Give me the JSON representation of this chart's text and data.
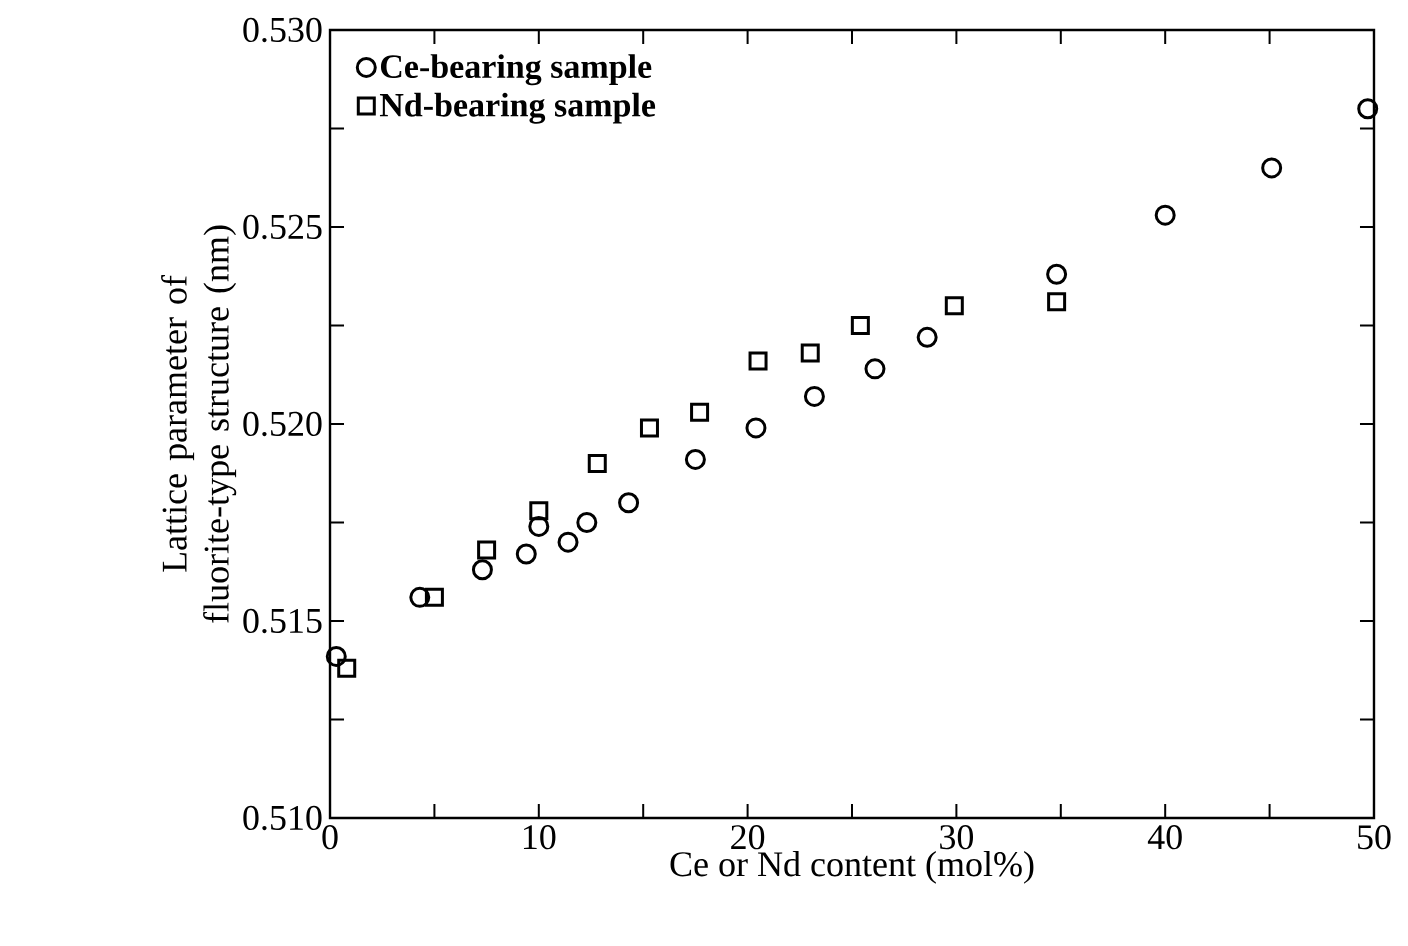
{
  "chart_data": {
    "type": "scatter",
    "xlabel": "Ce or Nd content (mol%)",
    "ylabel": "Lattice parameter of fluorite-type structure (nm)",
    "xlim": [
      0,
      50
    ],
    "ylim": [
      0.51,
      0.53
    ],
    "xticks": [
      0,
      {
        "value": 5,
        "label": null
      },
      10,
      {
        "value": 15,
        "label": null
      },
      20,
      {
        "value": 25,
        "label": null
      },
      30,
      {
        "value": 35,
        "label": null
      },
      40,
      {
        "value": 45,
        "label": null
      },
      50
    ],
    "yticks": [
      {
        "value": 0.51,
        "label": "0.510"
      },
      {
        "value": 0.5125,
        "label": null
      },
      {
        "value": 0.515,
        "label": "0.515"
      },
      {
        "value": 0.5175,
        "label": null
      },
      {
        "value": 0.52,
        "label": "0.520"
      },
      {
        "value": 0.5225,
        "label": null
      },
      {
        "value": 0.525,
        "label": "0.525"
      },
      {
        "value": 0.5275,
        "label": null
      },
      {
        "value": 0.53,
        "label": "0.530"
      }
    ],
    "legend": "top left",
    "grid": false,
    "series": [
      {
        "name": "Ce-bearing sample",
        "color": "#000000",
        "marker": "circle",
        "x": [
          0.3,
          4.3,
          7.3,
          9.4,
          10.0,
          11.4,
          12.3,
          14.3,
          17.5,
          20.4,
          23.2,
          26.1,
          28.6,
          34.8,
          40.0,
          45.1,
          49.7
        ],
        "values": [
          0.5141,
          0.5156,
          0.5163,
          0.5167,
          0.5174,
          0.517,
          0.5175,
          0.518,
          0.5191,
          0.5199,
          0.5207,
          0.5214,
          0.5222,
          0.5238,
          0.5253,
          0.5265,
          0.528
        ]
      },
      {
        "name": "Nd-bearing sample",
        "color": "#000000",
        "marker": "square",
        "x": [
          0.8,
          5.0,
          7.5,
          10.0,
          12.8,
          15.3,
          17.7,
          20.5,
          23.0,
          25.4,
          29.9,
          34.8
        ],
        "values": [
          0.5138,
          0.5156,
          0.5168,
          0.5178,
          0.519,
          0.5199,
          0.5203,
          0.5216,
          0.5218,
          0.5225,
          0.523,
          0.5231
        ]
      }
    ]
  }
}
